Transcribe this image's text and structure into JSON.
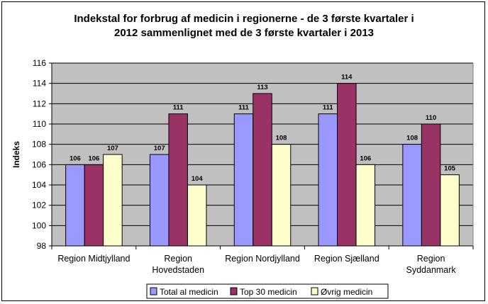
{
  "chart_data": {
    "type": "bar",
    "title": [
      "Indekstal for forbrug af medicin i regionerne - de 3 første kvartaler i",
      "2012 sammenlignet med de 3 første kvartaler i 2013"
    ],
    "ylabel": "Indeks",
    "xlabel": "",
    "ylim": [
      98,
      116
    ],
    "yticks": [
      98,
      100,
      102,
      104,
      106,
      108,
      110,
      112,
      114,
      116
    ],
    "grid": true,
    "legend_position": "bottom",
    "categories": [
      [
        "Region Midtjylland"
      ],
      [
        "Region",
        "Hovedstaden"
      ],
      [
        "Region Nordjylland"
      ],
      [
        "Region Sjælland"
      ],
      [
        "Region",
        "Syddanmark"
      ]
    ],
    "series": [
      {
        "name": "Total al medicin",
        "color": "#9999ff",
        "values": [
          106,
          107,
          111,
          111,
          108
        ]
      },
      {
        "name": "Top 30 medicin",
        "color": "#993366",
        "values": [
          106,
          111,
          113,
          114,
          110
        ]
      },
      {
        "name": "Øvrig medicin",
        "color": "#ffffcc",
        "values": [
          107,
          104,
          108,
          106,
          105
        ]
      }
    ],
    "colors": {
      "plot_background": "#c0c0c0",
      "gridline": "#000000"
    }
  }
}
